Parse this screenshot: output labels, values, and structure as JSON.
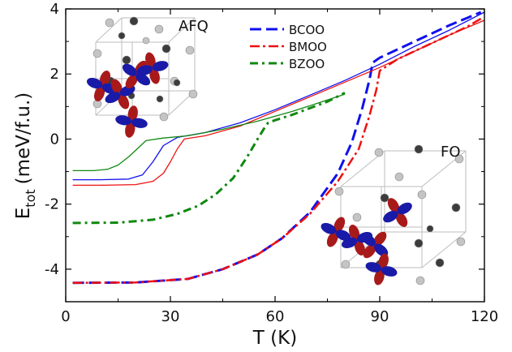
{
  "chart_data": {
    "type": "line",
    "xlabel": "T (K)",
    "ylabel": "E",
    "ylabel_subscript": "tot",
    "ylabel_unit": "(meV/f.u.)",
    "xlim": [
      0,
      120
    ],
    "ylim": [
      -5,
      4
    ],
    "xticks": [
      "0",
      "30",
      "60",
      "90",
      "120"
    ],
    "xtick_values": [
      0,
      30,
      60,
      90,
      120
    ],
    "yticks": [
      "-4",
      "-2",
      "0",
      "2",
      "4"
    ],
    "ytick_values": [
      -4,
      -2,
      0,
      2,
      4
    ],
    "grid": false,
    "legend_position": "top-center",
    "annotations": [
      "AFQ",
      "FO"
    ],
    "series": [
      {
        "name": "BCOO",
        "style": "dashed",
        "color": "#1010ee",
        "width": 3,
        "x": [
          2,
          20,
          35,
          45,
          55,
          62,
          70,
          78,
          82,
          85,
          87,
          88,
          90,
          95,
          100,
          105,
          110,
          115,
          119
        ],
        "y": [
          -4.42,
          -4.41,
          -4.3,
          -4.0,
          -3.55,
          -3.05,
          -2.25,
          -1.05,
          -0.1,
          0.95,
          1.8,
          2.35,
          2.5,
          2.75,
          3.0,
          3.25,
          3.5,
          3.72,
          3.9
        ]
      },
      {
        "name": "BMOO",
        "style": "dashdot",
        "color": "#ee1010",
        "width": 2.5,
        "x": [
          2,
          20,
          35,
          45,
          55,
          62,
          70,
          78,
          84,
          87,
          89,
          90,
          95,
          100,
          105,
          110,
          115,
          119
        ],
        "y": [
          -4.42,
          -4.41,
          -4.3,
          -4.0,
          -3.55,
          -3.05,
          -2.3,
          -1.3,
          -0.3,
          0.7,
          1.5,
          2.1,
          2.45,
          2.7,
          2.95,
          3.2,
          3.45,
          3.7
        ]
      },
      {
        "name": "BZOO",
        "style": "dashdotbold",
        "color": "#118811",
        "width": 3,
        "x": [
          2,
          15,
          25,
          32,
          38,
          43,
          48,
          52,
          55,
          57,
          58,
          60,
          65,
          70,
          75,
          80
        ],
        "y": [
          -2.58,
          -2.57,
          -2.48,
          -2.3,
          -2.05,
          -1.7,
          -1.2,
          -0.55,
          0.0,
          0.35,
          0.5,
          0.58,
          0.75,
          0.95,
          1.15,
          1.42
        ]
      },
      {
        "color": "#1010ee",
        "style": "solid",
        "width": 1.3,
        "x": [
          2,
          10,
          18,
          22,
          25,
          28,
          32,
          40,
          50,
          60,
          70,
          80,
          90,
          100,
          110,
          120
        ],
        "y": [
          -1.25,
          -1.25,
          -1.23,
          -1.1,
          -0.7,
          -0.2,
          0.05,
          0.2,
          0.5,
          0.9,
          1.35,
          1.8,
          2.3,
          2.85,
          3.35,
          3.9
        ]
      },
      {
        "color": "#ee1010",
        "style": "solid",
        "width": 1.3,
        "x": [
          2,
          10,
          20,
          25,
          28,
          30,
          32,
          34,
          40,
          50,
          60,
          70,
          80,
          90,
          100,
          110,
          120
        ],
        "y": [
          -1.42,
          -1.42,
          -1.4,
          -1.3,
          -1.05,
          -0.7,
          -0.3,
          0.0,
          0.1,
          0.4,
          0.85,
          1.3,
          1.75,
          2.2,
          2.7,
          3.2,
          3.65
        ]
      },
      {
        "color": "#118811",
        "style": "solid",
        "width": 1.3,
        "x": [
          2,
          8,
          12,
          15,
          18,
          21,
          23,
          28,
          35,
          45,
          55,
          65,
          75,
          80
        ],
        "y": [
          -0.97,
          -0.97,
          -0.93,
          -0.8,
          -0.55,
          -0.25,
          -0.05,
          0.03,
          0.1,
          0.3,
          0.55,
          0.85,
          1.2,
          1.38
        ]
      }
    ]
  },
  "colors": {
    "BCOO": "#1010ee",
    "BMOO": "#ee1010",
    "BZOO": "#118811",
    "atom_light": "#c4c4c4",
    "atom_dark": "#3c3c3c",
    "orbital_blue": "#1a1aa8",
    "orbital_red": "#a81a1a"
  },
  "icons": {
    "afq_inset": "crystal-cell-afq-icon",
    "fo_inset": "crystal-cell-fo-icon"
  }
}
